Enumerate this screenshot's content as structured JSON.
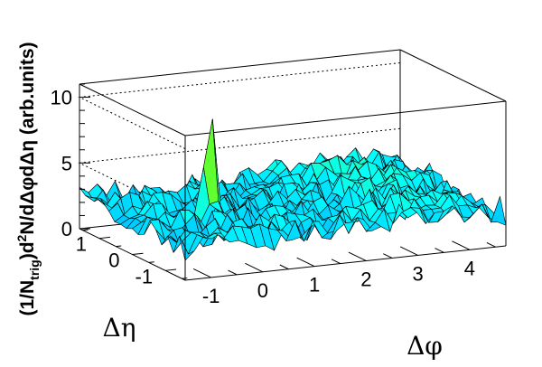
{
  "chart_data": {
    "type": "surface3d",
    "title": "",
    "xlabel": "Δφ",
    "ylabel": "Δη",
    "zlabel_parts": [
      "(1/N",
      "trig",
      ")d",
      "2",
      "N/dΔφdΔη (arb.units)"
    ],
    "x_range": [
      -1.5,
      4.7
    ],
    "y_range": [
      -1.6,
      1.6
    ],
    "z_range": [
      0,
      11
    ],
    "x_ticks": [
      {
        "v": -1,
        "label": "-1"
      },
      {
        "v": 0,
        "label": "0"
      },
      {
        "v": 1,
        "label": "1"
      },
      {
        "v": 2,
        "label": "2"
      },
      {
        "v": 3,
        "label": "3"
      },
      {
        "v": 4,
        "label": "4"
      }
    ],
    "y_ticks": [
      {
        "v": 1,
        "label": "1"
      },
      {
        "v": 0,
        "label": "0"
      },
      {
        "v": -1,
        "label": "-1"
      }
    ],
    "z_ticks": [
      {
        "v": 0,
        "label": "0"
      },
      {
        "v": 5,
        "label": "5"
      },
      {
        "v": 10,
        "label": "10"
      }
    ],
    "grid_lines_z": [
      5,
      10
    ],
    "surface": {
      "baseline": 2.5,
      "noise_amplitude": 1.0,
      "near_side_peak": {
        "x": 0,
        "y": 0,
        "height": 10.5
      },
      "away_side_ridge": {
        "x": 3.14,
        "height": 3.4
      }
    },
    "colormap": [
      "#1030ff",
      "#00b0ff",
      "#00ffff",
      "#30ff80",
      "#80ff00",
      "#ffff00",
      "#ff8000",
      "#ff0000"
    ]
  }
}
